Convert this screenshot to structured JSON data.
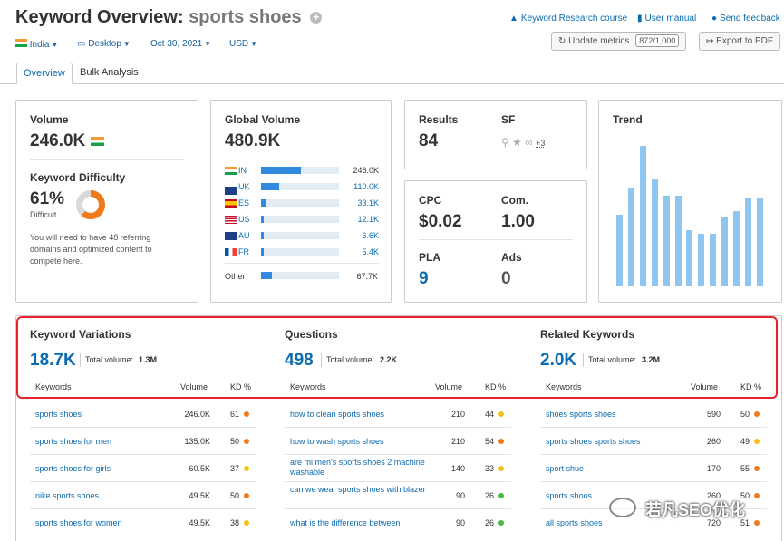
{
  "header": {
    "title_prefix": "Keyword Overview:",
    "title_keyword": "sports shoes",
    "add_symbol": "+",
    "links": {
      "course": "Keyword Research course",
      "manual": "User manual",
      "feedback": "Send feedback"
    },
    "filters": {
      "country": "India",
      "device": "Desktop",
      "date": "Oct 30, 2021",
      "currency": "USD"
    },
    "update_label": "Update metrics",
    "update_count": "872/1,000",
    "export_label": "Export to PDF"
  },
  "tabs": [
    "Overview",
    "Bulk Analysis"
  ],
  "volume": {
    "label": "Volume",
    "value": "246.0K",
    "kd_label": "Keyword Difficulty",
    "kd_value": "61%",
    "kd_percent": 61,
    "kd_level": "Difficult",
    "kd_note": "You will need to have 48 referring domains and optimized content to compete here."
  },
  "global_volume": {
    "label": "Global Volume",
    "value": "480.9K",
    "countries": [
      {
        "code": "IN",
        "value": "246.0K",
        "share": 0.51,
        "flag": "flag-in"
      },
      {
        "code": "UK",
        "value": "110.0K",
        "share": 0.23,
        "flag": "flag-uk"
      },
      {
        "code": "ES",
        "value": "33.1K",
        "share": 0.07,
        "flag": "flag-es"
      },
      {
        "code": "US",
        "value": "12.1K",
        "share": 0.025,
        "flag": "flag-us"
      },
      {
        "code": "AU",
        "value": "6.6K",
        "share": 0.014,
        "flag": "flag-au"
      },
      {
        "code": "FR",
        "value": "5.4K",
        "share": 0.011,
        "flag": "flag-fr"
      }
    ],
    "other_label": "Other",
    "other_value": "67.7K",
    "other_share": 0.14
  },
  "results": {
    "results_label": "Results",
    "results_value": "84",
    "sf_label": "SF",
    "sf_more": "+3"
  },
  "cpc": {
    "cpc_label": "CPC",
    "cpc_value": "$0.02",
    "com_label": "Com.",
    "com_value": "1.00",
    "pla_label": "PLA",
    "pla_value": "9",
    "ads_label": "Ads",
    "ads_value": "0"
  },
  "trend": {
    "label": "Trend",
    "values": [
      0.45,
      0.62,
      0.88,
      0.67,
      0.57,
      0.57,
      0.35,
      0.33,
      0.33,
      0.43,
      0.47,
      0.55,
      0.55
    ]
  },
  "sections": [
    {
      "title": "Keyword Variations",
      "count": "18.7K",
      "total_label": "Total volume:",
      "total_value": "1.3M",
      "columns": [
        "Keywords",
        "Volume",
        "KD %"
      ],
      "rows": [
        {
          "kw": "sports shoes",
          "vol": "246.0K",
          "kd": "61",
          "color": "#f07a1a"
        },
        {
          "kw": "sports shoes for men",
          "vol": "135.0K",
          "kd": "50",
          "color": "#f07a1a"
        },
        {
          "kw": "sports shoes for girls",
          "vol": "60.5K",
          "kd": "37",
          "color": "#f2c21b"
        },
        {
          "kw": "nike sports shoes",
          "vol": "49.5K",
          "kd": "50",
          "color": "#f07a1a"
        },
        {
          "kw": "sports shoes for women",
          "vol": "49.5K",
          "kd": "38",
          "color": "#f2c21b"
        }
      ]
    },
    {
      "title": "Questions",
      "count": "498",
      "total_label": "Total volume:",
      "total_value": "2.2K",
      "columns": [
        "Keywords",
        "Volume",
        "KD %"
      ],
      "rows": [
        {
          "kw": "how to clean sports shoes",
          "vol": "210",
          "kd": "44",
          "color": "#f2c21b"
        },
        {
          "kw": "how to wash sports shoes",
          "vol": "210",
          "kd": "54",
          "color": "#f07a1a"
        },
        {
          "kw": "are mi men's sports shoes 2 machine washable",
          "vol": "140",
          "kd": "33",
          "color": "#f2c21b"
        },
        {
          "kw": "can we wear sports shoes with blazer",
          "vol": "90",
          "kd": "26",
          "color": "#4cb848"
        },
        {
          "kw": "what is the difference between",
          "vol": "90",
          "kd": "26",
          "color": "#4cb848"
        }
      ]
    },
    {
      "title": "Related Keywords",
      "count": "2.0K",
      "total_label": "Total volume:",
      "total_value": "3.2M",
      "columns": [
        "Keywords",
        "Volume",
        "KD %"
      ],
      "rows": [
        {
          "kw": "shoes sports shoes",
          "vol": "590",
          "kd": "50",
          "color": "#f07a1a"
        },
        {
          "kw": "sports shoes sports shoes",
          "vol": "260",
          "kd": "49",
          "color": "#f2c21b"
        },
        {
          "kw": "sport shue",
          "vol": "170",
          "kd": "55",
          "color": "#f07a1a"
        },
        {
          "kw": "sports shoos",
          "vol": "260",
          "kd": "50",
          "color": "#f07a1a"
        },
        {
          "kw": "all sports shoes",
          "vol": "720",
          "kd": "51",
          "color": "#f07a1a"
        }
      ]
    }
  ],
  "watermark": "若凡SEO优化"
}
